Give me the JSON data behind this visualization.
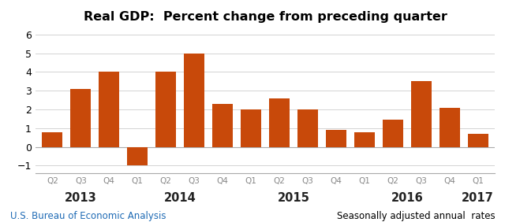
{
  "title": "Real GDP:  Percent change from preceding quarter",
  "bar_color": "#C8490A",
  "background_color": "#ffffff",
  "values": [
    0.8,
    3.1,
    4.0,
    -1.0,
    4.0,
    5.0,
    2.3,
    2.0,
    2.6,
    2.0,
    0.9,
    0.8,
    1.45,
    3.5,
    2.1,
    0.7
  ],
  "quarter_labels": [
    "Q2",
    "Q3",
    "Q4",
    "Q1",
    "Q2",
    "Q3",
    "Q4",
    "Q1",
    "Q2",
    "Q3",
    "Q4",
    "Q1",
    "Q2",
    "Q3",
    "Q4",
    "Q1"
  ],
  "year_labels": [
    "2013",
    "2014",
    "2015",
    "2016",
    "2017"
  ],
  "year_bar_indices": [
    0,
    1,
    2,
    3,
    4,
    5,
    6,
    7,
    8,
    9,
    10,
    11,
    12,
    13,
    14,
    15
  ],
  "year_center_indices": [
    1.0,
    4.5,
    8.5,
    12.5,
    15.0
  ],
  "ylim": [
    -1.4,
    6.3
  ],
  "yticks": [
    -1,
    0,
    1,
    2,
    3,
    4,
    5,
    6
  ],
  "footer_left": "U.S. Bureau of Economic Analysis",
  "footer_right": "Seasonally adjusted annual  rates",
  "footer_color": "#1F6BB5",
  "footer_fontsize": 8.5,
  "quarter_label_color": "#888888",
  "quarter_label_fontsize": 7.5,
  "year_label_fontsize": 10.5,
  "year_label_color": "#222222"
}
